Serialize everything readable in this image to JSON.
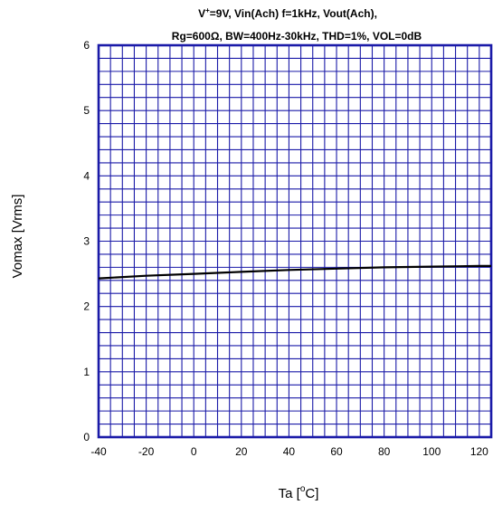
{
  "chart_data": {
    "type": "line",
    "title_line1": {
      "pre": "V",
      "sup": "+",
      "post": "=9V, Vin(Ach) f=1kHz, Vout(Ach),"
    },
    "title_line2": "Rg=600Ω, BW=400Hz-30kHz, THD=1%, VOL=0dB",
    "xlabel": {
      "pre": "Ta [",
      "sup": "o",
      "post": "C]"
    },
    "ylabel": "Vomax [Vrms]",
    "xlim": [
      -40,
      125
    ],
    "ylim": [
      0,
      6
    ],
    "x_ticks": [
      -40,
      -20,
      0,
      20,
      40,
      60,
      80,
      100,
      120
    ],
    "y_ticks": [
      0,
      1,
      2,
      3,
      4,
      5,
      6
    ],
    "grid": true,
    "grid_color": "#1a1aa8",
    "line_color": "#000000",
    "series": [
      {
        "x": [
          -40,
          -20,
          0,
          20,
          40,
          60,
          80,
          100,
          120,
          125
        ],
        "y": [
          2.43,
          2.47,
          2.5,
          2.53,
          2.56,
          2.58,
          2.6,
          2.61,
          2.62,
          2.62
        ]
      }
    ]
  }
}
